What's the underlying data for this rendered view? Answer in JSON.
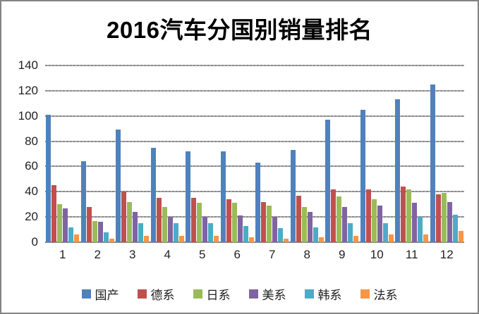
{
  "title": "2016汽车分国别销量排名",
  "chart_data": {
    "type": "bar",
    "title": "2016汽车分国别销量排名",
    "xlabel": "",
    "ylabel": "",
    "categories": [
      "1",
      "2",
      "3",
      "4",
      "5",
      "6",
      "7",
      "8",
      "9",
      "10",
      "11",
      "12"
    ],
    "series": [
      {
        "name": "国产",
        "slug": "domestic",
        "color": "#4F81BD",
        "values": [
          101,
          64,
          89,
          75,
          72,
          72,
          63,
          73,
          97,
          105,
          113,
          125
        ]
      },
      {
        "name": "德系",
        "slug": "german",
        "color": "#C0504D",
        "values": [
          45,
          28,
          40,
          35,
          35,
          34,
          32,
          37,
          42,
          42,
          44,
          38
        ]
      },
      {
        "name": "日系",
        "slug": "japanese",
        "color": "#9BBB59",
        "values": [
          30,
          17,
          32,
          28,
          31,
          31,
          29,
          28,
          36,
          34,
          42,
          39
        ]
      },
      {
        "name": "美系",
        "slug": "american",
        "color": "#8064A2",
        "values": [
          27,
          16,
          24,
          20,
          20,
          21,
          20,
          24,
          28,
          29,
          31,
          32
        ]
      },
      {
        "name": "韩系",
        "slug": "korean",
        "color": "#4BACC6",
        "values": [
          12,
          8,
          15,
          15,
          15,
          13,
          11,
          12,
          15,
          15,
          20,
          22
        ]
      },
      {
        "name": "法系",
        "slug": "french",
        "color": "#F79646",
        "values": [
          6,
          3,
          5,
          5,
          5,
          4,
          3,
          4,
          5,
          6,
          6,
          9
        ]
      }
    ],
    "ylim": [
      0,
      140
    ],
    "yticks": [
      0,
      20,
      40,
      60,
      80,
      100,
      120,
      140
    ],
    "grid": "horizontal",
    "legend_position": "bottom",
    "frame_border_color": "#848484",
    "gridline_color": "#8b8b8b",
    "text_color": "#1f1f1f"
  }
}
